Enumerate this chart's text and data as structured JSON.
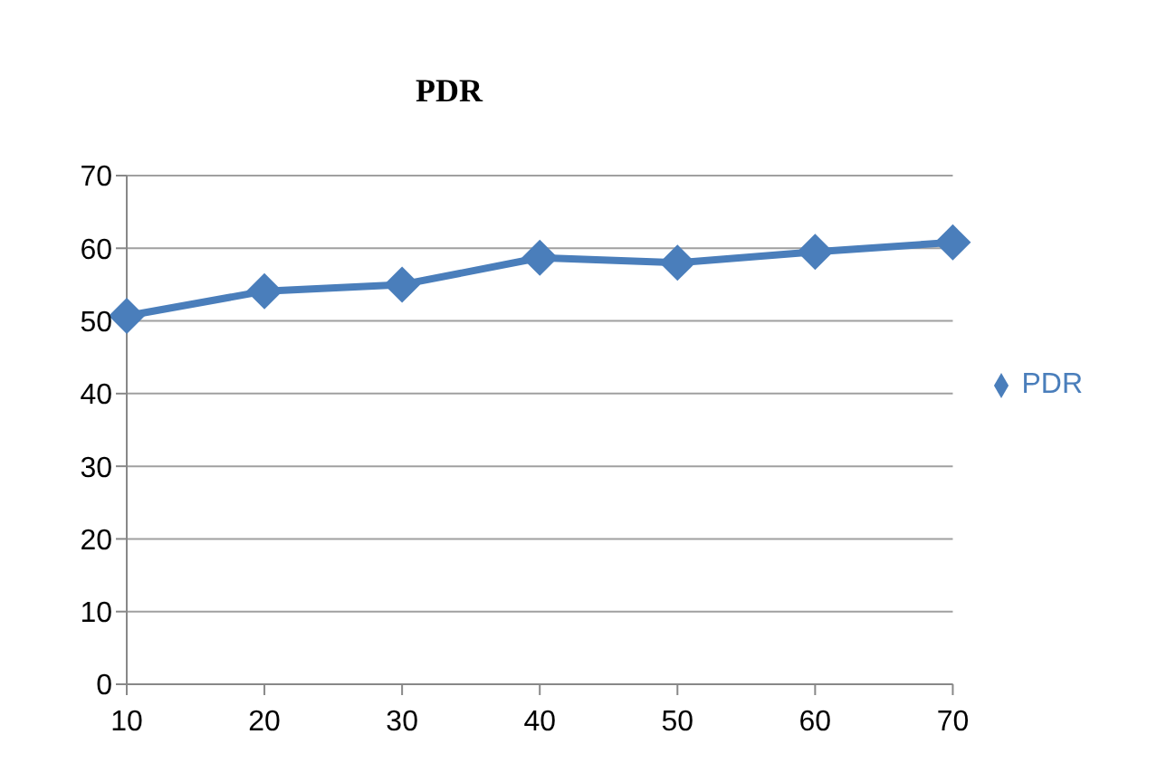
{
  "chart_data": {
    "type": "line",
    "title": "PDR",
    "categories": [
      "10",
      "20",
      "30",
      "40",
      "50",
      "60",
      "70"
    ],
    "series": [
      {
        "name": "PDR",
        "color": "#4a7ebb",
        "values": [
          50.7,
          54.1,
          55.0,
          58.7,
          58.0,
          59.5,
          60.8
        ]
      }
    ],
    "ylim": [
      0,
      70
    ],
    "yticks": [
      0,
      10,
      20,
      30,
      40,
      50,
      60,
      70
    ],
    "grid": "y",
    "legend": "right",
    "marker": "diamond",
    "line_style": "solid"
  }
}
